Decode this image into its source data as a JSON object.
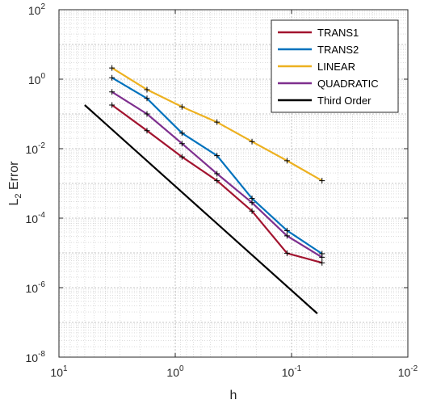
{
  "chart_data": {
    "type": "line",
    "xlabel": "h",
    "ylabel_main": "L",
    "ylabel_sub": "2",
    "ylabel_rest": " Error",
    "xscale": "log",
    "yscale": "log",
    "x_reversed": true,
    "xlim": [
      10,
      0.01
    ],
    "ylim": [
      1e-08,
      100
    ],
    "x_ticks": [
      {
        "value": 10,
        "base": "10",
        "exp": "1"
      },
      {
        "value": 1,
        "base": "10",
        "exp": "0"
      },
      {
        "value": 0.1,
        "base": "10",
        "exp": "-1"
      },
      {
        "value": 0.01,
        "base": "10",
        "exp": "-2"
      }
    ],
    "y_ticks": [
      {
        "value": 1e-08,
        "base": "10",
        "exp": "-8"
      },
      {
        "value": 1e-06,
        "base": "10",
        "exp": "-6"
      },
      {
        "value": 0.0001,
        "base": "10",
        "exp": "-4"
      },
      {
        "value": 0.01,
        "base": "10",
        "exp": "-2"
      },
      {
        "value": 1,
        "base": "10",
        "exp": "0"
      },
      {
        "value": 100,
        "base": "10",
        "exp": "2"
      }
    ],
    "grid": true,
    "minor_grid": true,
    "legend_position": "top-right",
    "series": [
      {
        "name": "TRANS1",
        "color": "#A2142F",
        "marker": "+",
        "x": [
          3.5,
          1.75,
          0.875,
          0.4375,
          0.21875,
          0.109375,
          0.0546875
        ],
        "y": [
          0.18,
          0.033,
          0.0058,
          0.0012,
          0.00016,
          9.8e-06,
          5.2e-06
        ]
      },
      {
        "name": "TRANS2",
        "color": "#0072BD",
        "marker": "+",
        "x": [
          3.5,
          1.75,
          0.875,
          0.4375,
          0.21875,
          0.109375,
          0.0546875
        ],
        "y": [
          1.1,
          0.28,
          0.028,
          0.0063,
          0.00037,
          4.4e-05,
          9.5e-06
        ]
      },
      {
        "name": "LINEAR",
        "color": "#EDB120",
        "marker": "+",
        "x": [
          3.5,
          1.75,
          0.875,
          0.4375,
          0.21875,
          0.109375,
          0.0546875
        ],
        "y": [
          2.1,
          0.5,
          0.16,
          0.058,
          0.016,
          0.0045,
          0.0012
        ]
      },
      {
        "name": "QUADRATIC",
        "color": "#7E2F8E",
        "marker": "+",
        "x": [
          3.5,
          1.75,
          0.875,
          0.4375,
          0.21875,
          0.109375,
          0.0546875
        ],
        "y": [
          0.43,
          0.1,
          0.014,
          0.0019,
          0.00028,
          3.1e-05,
          7.5e-06
        ]
      },
      {
        "name": "Third Order",
        "color": "#000000",
        "marker": "none",
        "x": [
          6,
          0.06
        ],
        "y": [
          0.18,
          1.8e-07
        ]
      }
    ]
  }
}
